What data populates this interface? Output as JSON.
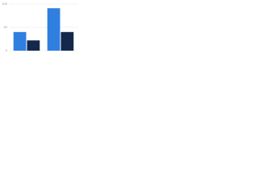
{
  "chart_data": {
    "type": "bar",
    "categories": [
      null,
      null
    ],
    "series": [
      {
        "color": "#2f7fe0",
        "values": [
          40,
          91
        ]
      },
      {
        "color": "#13284b",
        "values": [
          22,
          40
        ]
      }
    ],
    "ylim": [
      0,
      100
    ],
    "yticks": [
      0,
      50,
      100
    ],
    "grid": true
  }
}
